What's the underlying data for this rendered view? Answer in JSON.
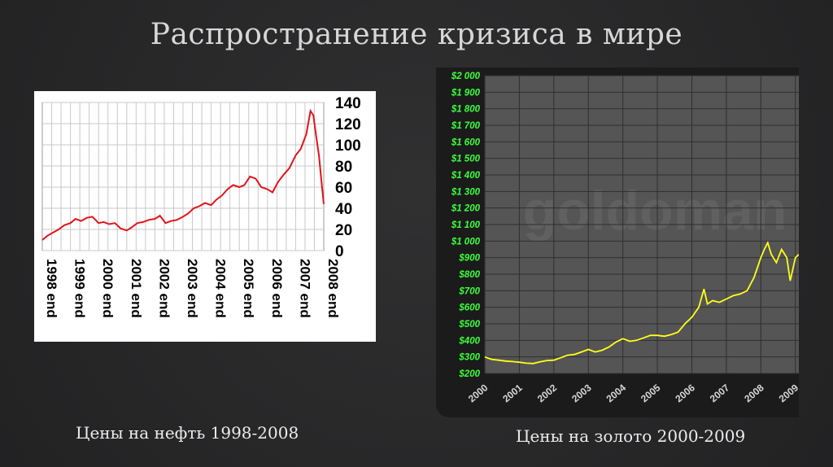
{
  "slide": {
    "title": "Распространение кризиса в мире",
    "caption_oil": "Цены на нефть 1998-2008",
    "caption_gold": "Цены на золото 2000-2009"
  },
  "colors": {
    "background": "#2a2a2b",
    "oil_line": "#e0141b",
    "gold_line": "#ffff1a",
    "gold_plot_bg": "#555555",
    "gold_tick_labels": "#3cff3c"
  },
  "chart_data": [
    {
      "type": "line",
      "title": "",
      "xlabel": "",
      "ylabel": "",
      "x_tick_labels": [
        "1998 end",
        "1999 end",
        "2000 end",
        "2001 end",
        "2002 end",
        "2003 end",
        "2004 end",
        "2005 end",
        "2006 end",
        "2007 end",
        "2008 end"
      ],
      "y_ticks": [
        0,
        20,
        40,
        60,
        80,
        100,
        120,
        140
      ],
      "y_axis_side": "right",
      "xlim": [
        1998.92,
        2008.92
      ],
      "ylim": [
        0,
        140
      ],
      "grid": true,
      "series": [
        {
          "x": [
            1998.92,
            1999.1,
            1999.3,
            1999.5,
            1999.7,
            1999.92,
            2000.1,
            2000.3,
            2000.5,
            2000.7,
            2000.92,
            2001.1,
            2001.3,
            2001.5,
            2001.7,
            2001.92,
            2002.1,
            2002.3,
            2002.5,
            2002.7,
            2002.92,
            2003.1,
            2003.3,
            2003.5,
            2003.7,
            2003.92,
            2004.1,
            2004.3,
            2004.5,
            2004.7,
            2004.92,
            2005.1,
            2005.3,
            2005.5,
            2005.7,
            2005.92,
            2006.1,
            2006.3,
            2006.5,
            2006.7,
            2006.92,
            2007.1,
            2007.3,
            2007.5,
            2007.7,
            2007.92,
            2008.1,
            2008.3,
            2008.45,
            2008.55,
            2008.65,
            2008.75,
            2008.85,
            2008.92
          ],
          "values": [
            10,
            14,
            17,
            20,
            24,
            26,
            30,
            28,
            31,
            32,
            26,
            27,
            25,
            26,
            21,
            19,
            22,
            26,
            27,
            29,
            30,
            33,
            26,
            28,
            29,
            32,
            35,
            40,
            42,
            45,
            43,
            48,
            52,
            58,
            62,
            60,
            62,
            70,
            68,
            60,
            58,
            55,
            65,
            72,
            78,
            90,
            96,
            110,
            132,
            128,
            108,
            90,
            62,
            44
          ]
        }
      ]
    },
    {
      "type": "line",
      "title": "",
      "xlabel": "",
      "ylabel": "",
      "x_tick_labels": [
        "2000",
        "2001",
        "2002",
        "2003",
        "2004",
        "2005",
        "2006",
        "2007",
        "2008",
        "2009"
      ],
      "y_tick_labels": [
        "$200",
        "$300",
        "$400",
        "$500",
        "$600",
        "$700",
        "$800",
        "$900",
        "$1 000",
        "$1 100",
        "$1 200",
        "$1 300",
        "$1 400",
        "$1 500",
        "$1 600",
        "$1 700",
        "$1 800",
        "$1 900",
        "$2 000"
      ],
      "y_axis_side": "left",
      "xlim": [
        2000,
        2009.1
      ],
      "ylim": [
        200,
        2000
      ],
      "grid": true,
      "watermark": "goldoman",
      "series": [
        {
          "x": [
            2000.0,
            2000.2,
            2000.4,
            2000.6,
            2000.8,
            2001.0,
            2001.2,
            2001.4,
            2001.6,
            2001.8,
            2002.0,
            2002.2,
            2002.4,
            2002.6,
            2002.8,
            2003.0,
            2003.2,
            2003.4,
            2003.6,
            2003.8,
            2004.0,
            2004.2,
            2004.4,
            2004.6,
            2004.8,
            2005.0,
            2005.2,
            2005.4,
            2005.6,
            2005.8,
            2006.0,
            2006.2,
            2006.35,
            2006.45,
            2006.6,
            2006.8,
            2007.0,
            2007.2,
            2007.4,
            2007.6,
            2007.8,
            2008.0,
            2008.1,
            2008.2,
            2008.3,
            2008.45,
            2008.6,
            2008.75,
            2008.85,
            2009.0,
            2009.1
          ],
          "values": [
            300,
            285,
            280,
            275,
            272,
            268,
            262,
            260,
            270,
            278,
            280,
            295,
            310,
            315,
            330,
            345,
            330,
            340,
            360,
            390,
            410,
            395,
            400,
            415,
            430,
            430,
            425,
            435,
            450,
            500,
            540,
            600,
            710,
            620,
            640,
            630,
            650,
            670,
            680,
            700,
            780,
            900,
            950,
            990,
            920,
            870,
            950,
            900,
            760,
            900,
            920
          ]
        }
      ]
    }
  ]
}
